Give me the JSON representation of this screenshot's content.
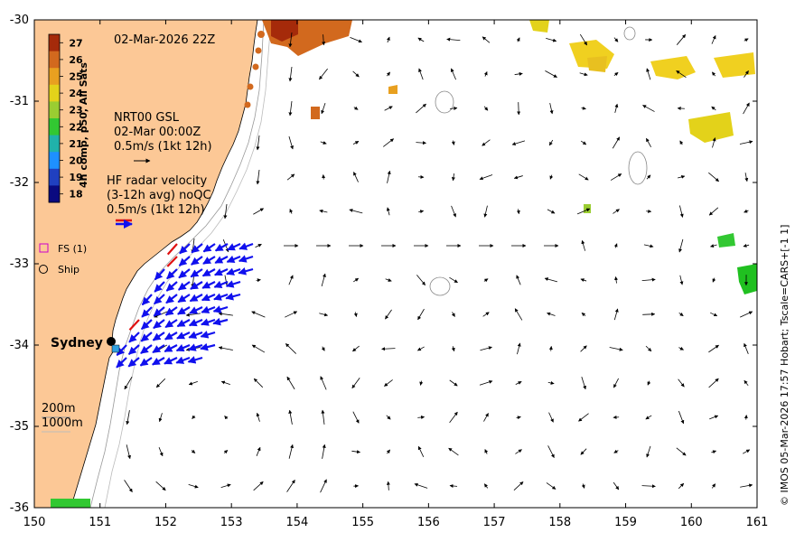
{
  "map": {
    "timestamp": "02-Mar-2026 22Z",
    "colorbar_label": "4h comp, p50, All Sats",
    "colorbar_ticks": [
      "27",
      "26",
      "25",
      "24",
      "23",
      "22",
      "21",
      "20",
      "19",
      "18"
    ],
    "colorbar_colors": [
      "#a52a0a",
      "#d2691e",
      "#e8a020",
      "#e3d21a",
      "#9acd32",
      "#32c832",
      "#20b2aa",
      "#1e90ff",
      "#2040c0",
      "#0a0a80"
    ],
    "nrt_lines": [
      "NRT00 GSL",
      "02-Mar 00:00Z",
      "0.5m/s (1kt 12h)"
    ],
    "hf_lines": [
      "HF radar velocity",
      "(3-12h avg) noQC",
      "0.5m/s (1kt 12h)"
    ],
    "legend": [
      {
        "label": "FS (1)",
        "symbol": "magenta-square"
      },
      {
        "label": "Ship",
        "symbol": "circle"
      }
    ],
    "city": "Sydney",
    "depth_labels": [
      "200m",
      "1000m"
    ],
    "credit": "© IMOS 05-Mar-2026 17:57 Hobart; Tscale=CARS+[-1 1]",
    "x_ticks": [
      "150",
      "151",
      "152",
      "153",
      "154",
      "155",
      "156",
      "157",
      "158",
      "159",
      "160",
      "161"
    ],
    "y_ticks": [
      "-30",
      "-31",
      "-32",
      "-33",
      "-34",
      "-35",
      "-36"
    ],
    "x_range": [
      150,
      161
    ],
    "y_range": [
      -36,
      -30
    ],
    "colors": {
      "land": "#fcc896",
      "hf_blue": "#1010ee",
      "hf_red": "#e01010",
      "vector": "#000000"
    }
  }
}
